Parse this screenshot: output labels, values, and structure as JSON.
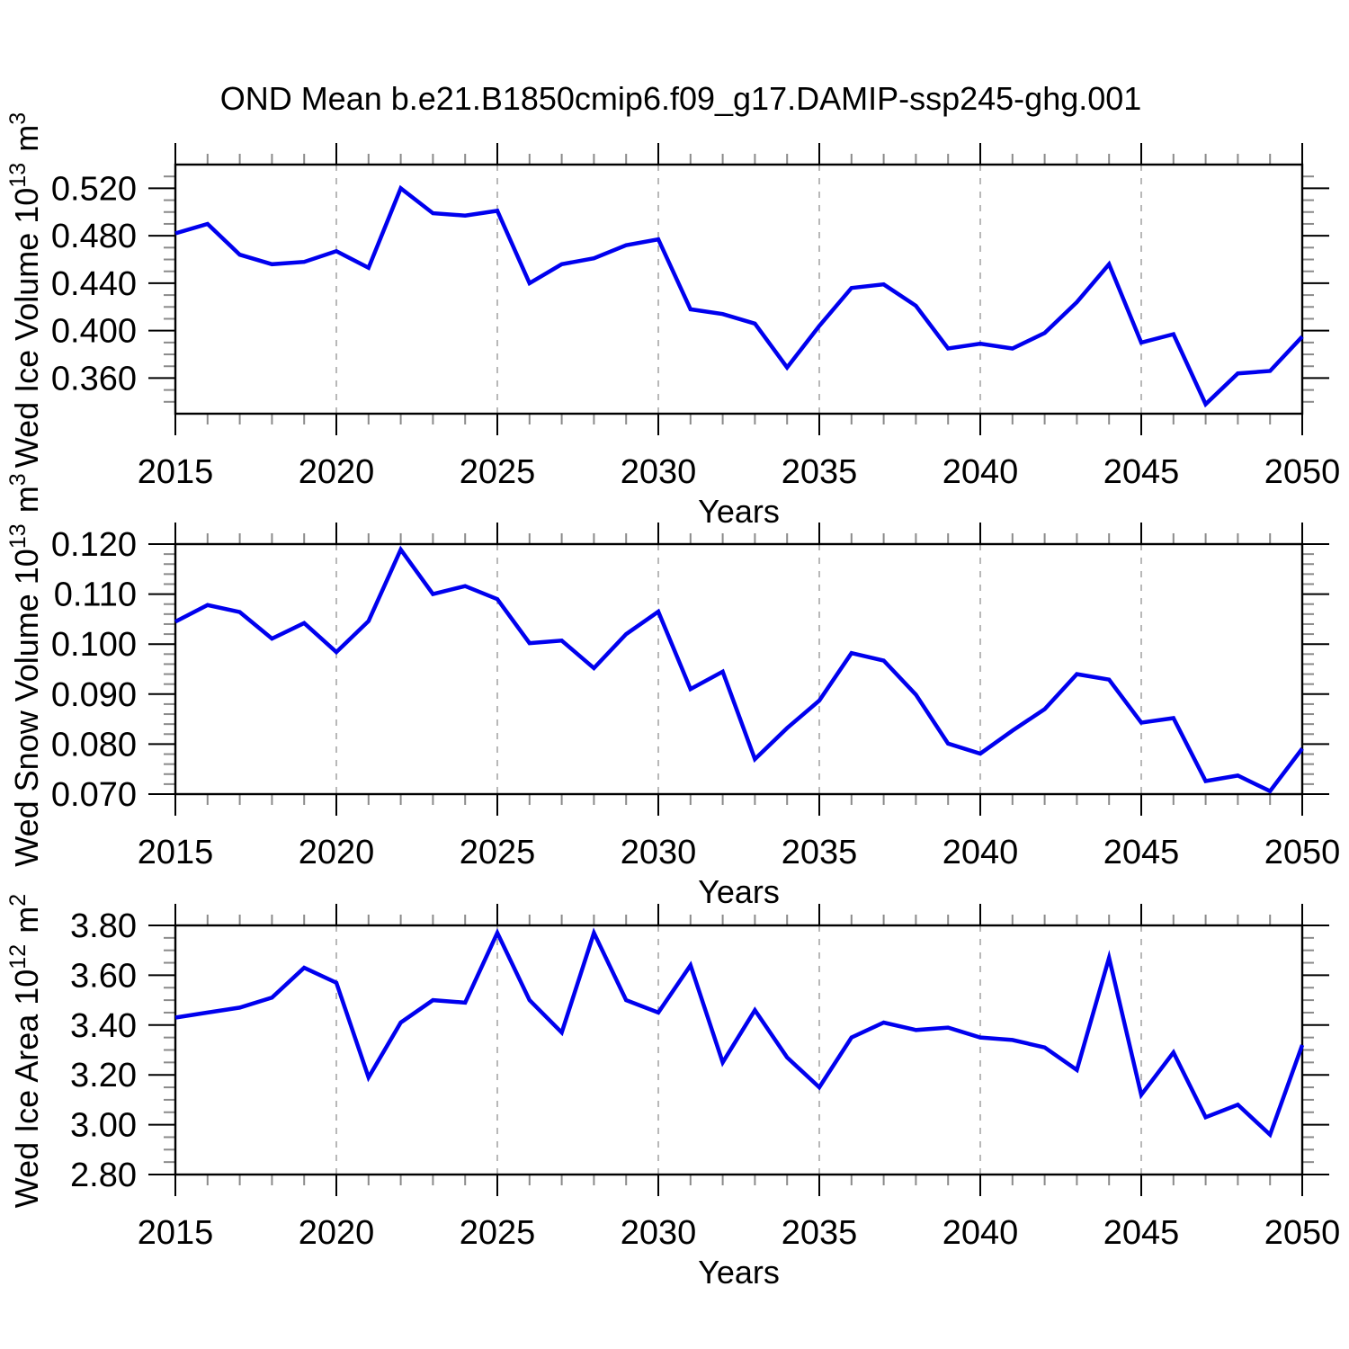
{
  "title": "OND Mean b.e21.B1850cmip6.f09_g17.DAMIP-ssp245-ghg.001",
  "style": {
    "line_color": "#0000EE",
    "grid_color": "#A6A6A6",
    "frame_color": "#000000",
    "minor_tick_color": "#8A8A8A",
    "background": "#FFFFFF"
  },
  "x_axis": {
    "label": "Years",
    "min": 2015,
    "max": 2050,
    "major_tick_step": 5,
    "minor_tick_step": 1,
    "tick_labels": [
      "2015",
      "2020",
      "2025",
      "2030",
      "2035",
      "2040",
      "2045",
      "2050"
    ],
    "grid_years": [
      2020,
      2025,
      2030,
      2035,
      2040,
      2045
    ]
  },
  "years": [
    2015,
    2016,
    2017,
    2018,
    2019,
    2020,
    2021,
    2022,
    2023,
    2024,
    2025,
    2026,
    2027,
    2028,
    2029,
    2030,
    2031,
    2032,
    2033,
    2034,
    2035,
    2036,
    2037,
    2038,
    2039,
    2040,
    2041,
    2042,
    2043,
    2044,
    2045,
    2046,
    2047,
    2048,
    2049,
    2050
  ],
  "chart_data": [
    {
      "type": "line",
      "title": "Wed Ice Volume",
      "ylabel": "Wed Ice Volume 10^13 m^3",
      "xlabel": "Years",
      "ylim": [
        0.33,
        0.54
      ],
      "yticks": [
        0.36,
        0.4,
        0.44,
        0.48,
        0.52
      ],
      "ytick_labels": [
        "0.360",
        "0.400",
        "0.440",
        "0.480",
        "0.520"
      ],
      "yminor_step": 0.01,
      "grid": "vertical-dashed",
      "legend": "none",
      "values": [
        0.482,
        0.49,
        0.464,
        0.456,
        0.458,
        0.467,
        0.453,
        0.52,
        0.499,
        0.497,
        0.501,
        0.44,
        0.456,
        0.461,
        0.472,
        0.477,
        0.418,
        0.414,
        0.406,
        0.369,
        0.404,
        0.436,
        0.439,
        0.421,
        0.385,
        0.389,
        0.385,
        0.398,
        0.424,
        0.456,
        0.39,
        0.397,
        0.338,
        0.364,
        0.366,
        0.395
      ]
    },
    {
      "type": "line",
      "title": "Wed Snow Volume",
      "ylabel": "Wed Snow Volume 10^13 m^3",
      "xlabel": "Years",
      "ylim": [
        0.07,
        0.12
      ],
      "yticks": [
        0.07,
        0.08,
        0.09,
        0.1,
        0.11,
        0.12
      ],
      "ytick_labels": [
        "0.070",
        "0.080",
        "0.090",
        "0.100",
        "0.110",
        "0.120"
      ],
      "yminor_step": 0.002,
      "grid": "vertical-dashed",
      "legend": "none",
      "values": [
        0.1045,
        0.1078,
        0.1064,
        0.1011,
        0.1042,
        0.0984,
        0.1046,
        0.1189,
        0.11,
        0.1116,
        0.109,
        0.1002,
        0.1007,
        0.0952,
        0.102,
        0.1065,
        0.091,
        0.0945,
        0.077,
        0.0832,
        0.0887,
        0.0982,
        0.0967,
        0.0899,
        0.0801,
        0.0781,
        0.0827,
        0.087,
        0.094,
        0.0929,
        0.0843,
        0.0852,
        0.0726,
        0.0737,
        0.0706,
        0.0791
      ]
    },
    {
      "type": "line",
      "title": "Wed Ice Area",
      "ylabel": "Wed Ice Area 10^12 m^2",
      "xlabel": "Years",
      "ylim": [
        2.8,
        3.8
      ],
      "yticks": [
        2.8,
        3.0,
        3.2,
        3.4,
        3.6,
        3.8
      ],
      "ytick_labels": [
        "2.80",
        "3.00",
        "3.20",
        "3.40",
        "3.60",
        "3.80"
      ],
      "yminor_step": 0.05,
      "grid": "vertical-dashed",
      "legend": "none",
      "values": [
        3.43,
        3.45,
        3.47,
        3.51,
        3.63,
        3.57,
        3.19,
        3.41,
        3.5,
        3.49,
        3.77,
        3.5,
        3.37,
        3.77,
        3.5,
        3.45,
        3.64,
        3.25,
        3.46,
        3.27,
        3.15,
        3.35,
        3.41,
        3.38,
        3.39,
        3.35,
        3.34,
        3.31,
        3.22,
        3.67,
        3.12,
        3.29,
        3.03,
        3.08,
        2.96,
        3.32
      ]
    }
  ]
}
